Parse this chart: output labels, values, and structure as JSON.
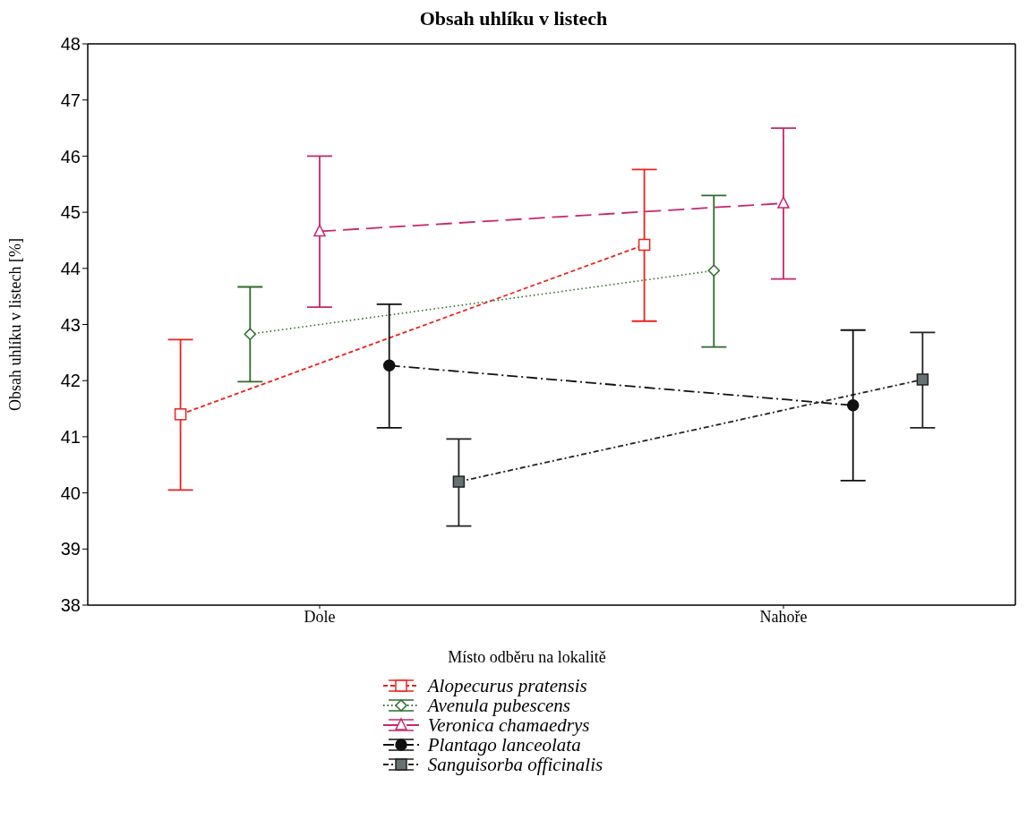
{
  "chart_data": {
    "type": "line",
    "title": "Obsah uhlíku v listech",
    "xlabel": "Místo odběru na lokalitě",
    "ylabel": "Obsah uhlíku v listech [%]",
    "categories": [
      "Dole",
      "Nahoře"
    ],
    "series": [
      {
        "name": "Alopecurus pratensis",
        "color": "#e8231e",
        "marker": "square",
        "line_style": "dashed",
        "values": [
          41.4,
          44.42
        ],
        "errors": [
          [
            40.05,
            42.73
          ],
          [
            43.06,
            45.76
          ]
        ]
      },
      {
        "name": "Avenula pubescens",
        "color": "#2e6b2a",
        "marker": "diamond",
        "line_style": "dotted",
        "values": [
          42.83,
          43.96
        ],
        "errors": [
          [
            41.98,
            43.67
          ],
          [
            42.6,
            45.3
          ]
        ]
      },
      {
        "name": "Veronica chamaedrys",
        "color": "#c8266e",
        "marker": "triangle",
        "line_style": "dashed",
        "values": [
          44.66,
          45.16
        ],
        "errors": [
          [
            43.31,
            46.0
          ],
          [
            43.81,
            46.5
          ]
        ]
      },
      {
        "name": "Plantago lanceolata",
        "color": "#111111",
        "marker": "circle",
        "line_style": "dashed",
        "values": [
          42.27,
          41.56
        ],
        "errors": [
          [
            41.16,
            43.36
          ],
          [
            40.22,
            42.9
          ]
        ]
      },
      {
        "name": "Sanguisorba officinalis",
        "color": "#222222",
        "marker": "square",
        "line_style": "dashed",
        "values": [
          40.2,
          42.02
        ],
        "errors": [
          [
            39.41,
            40.96
          ],
          [
            41.16,
            42.86
          ]
        ]
      }
    ],
    "ylim": [
      38,
      48
    ],
    "yticks": [
      38,
      39,
      40,
      41,
      42,
      43,
      44,
      45,
      46,
      47,
      48
    ],
    "grid": false,
    "legend": "bottom"
  }
}
